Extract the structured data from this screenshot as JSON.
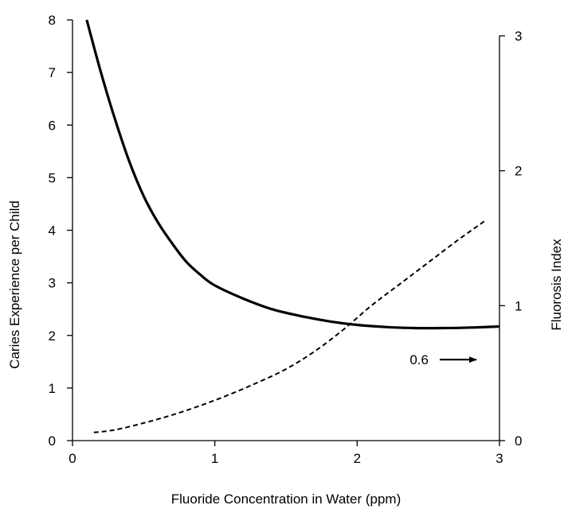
{
  "chart_data": {
    "type": "line",
    "xlabel": "Fluoride Concentration in Water (ppm)",
    "ylabel_left": "Caries Experience per Child",
    "ylabel_right": "Fluorosis Index",
    "xlim": [
      0,
      3
    ],
    "ylim_left": [
      0,
      8
    ],
    "ylim_right": [
      0,
      3
    ],
    "x_ticks": [
      0,
      1,
      2,
      3
    ],
    "y_left_ticks": [
      0,
      1,
      2,
      3,
      4,
      5,
      6,
      7,
      8
    ],
    "y_right_ticks": [
      0,
      1,
      2,
      3
    ],
    "grid": false,
    "series": [
      {
        "axis": "left",
        "style": "solid",
        "color": "#000000",
        "x": [
          0.1,
          0.2,
          0.3,
          0.4,
          0.5,
          0.6,
          0.7,
          0.8,
          0.9,
          1.0,
          1.2,
          1.4,
          1.6,
          1.8,
          2.0,
          2.2,
          2.4,
          2.6,
          2.8,
          3.0
        ],
        "y": [
          8.0,
          7.0,
          6.1,
          5.3,
          4.65,
          4.15,
          3.75,
          3.4,
          3.15,
          2.95,
          2.7,
          2.5,
          2.37,
          2.27,
          2.2,
          2.16,
          2.14,
          2.14,
          2.15,
          2.17
        ]
      },
      {
        "axis": "right",
        "style": "dashed",
        "color": "#000000",
        "x": [
          0.15,
          0.3,
          0.5,
          0.7,
          0.9,
          1.1,
          1.3,
          1.5,
          1.7,
          1.9,
          2.1,
          2.3,
          2.5,
          2.7,
          2.9
        ],
        "y": [
          0.06,
          0.08,
          0.13,
          0.19,
          0.26,
          0.34,
          0.43,
          0.53,
          0.66,
          0.82,
          1.0,
          1.16,
          1.32,
          1.48,
          1.63
        ]
      }
    ],
    "annotations": [
      {
        "text": "0.6",
        "arrow": "right",
        "x": 2.58,
        "y_right": 0.6
      }
    ]
  }
}
